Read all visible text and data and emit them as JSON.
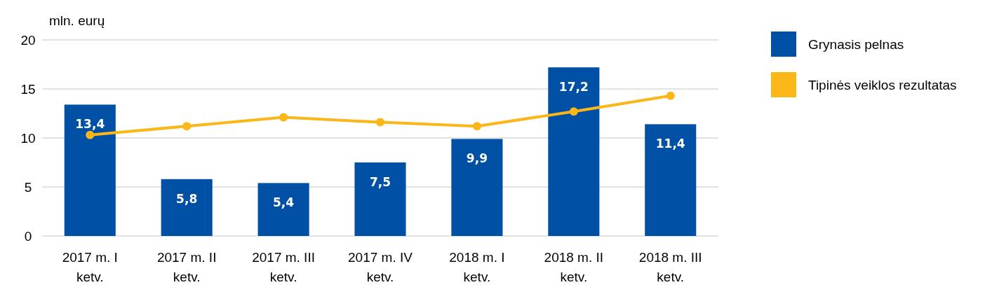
{
  "chart_data": {
    "type": "bar",
    "ylabel": "mln. eurų",
    "categories": [
      "2017 m. I ketv.",
      "2017 m. II ketv.",
      "2017 m. III ketv.",
      "2017 m. IV ketv.",
      "2018 m. I ketv.",
      "2018 m. II ketv.",
      "2018 m. III ketv."
    ],
    "series": [
      {
        "name": "Grynasis pelnas",
        "color": "#0051a5",
        "values": [
          13.4,
          5.8,
          5.4,
          7.5,
          9.9,
          17.2,
          11.4
        ],
        "value_labels": [
          "13,4",
          "5,8",
          "5,4",
          "7,5",
          "9,9",
          "17,2",
          "11,4"
        ]
      },
      {
        "name": "Tipinės veiklos rezultatas",
        "type": "line",
        "color": "#fbb617",
        "marker": "circle",
        "values": [
          10.3,
          11.2,
          12.1,
          11.6,
          11.2,
          12.7,
          14.3
        ]
      }
    ],
    "ylim": [
      0,
      20
    ],
    "yticks": [
      0,
      5,
      10,
      15,
      20
    ],
    "grid": "y",
    "legend": "right"
  }
}
